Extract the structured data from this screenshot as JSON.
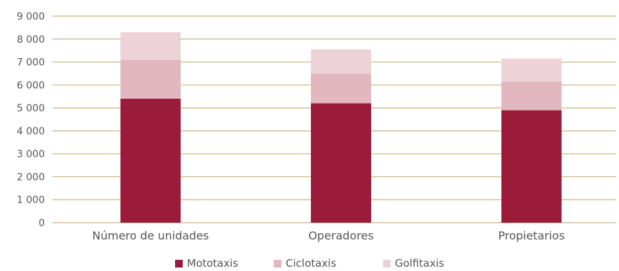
{
  "chart_data": {
    "type": "bar",
    "stacked": true,
    "categories": [
      "Número de unidades",
      "Operadores",
      "Propietarios"
    ],
    "series": [
      {
        "name": "Mototaxis",
        "values": [
          5400,
          5200,
          4900
        ],
        "color": "#9b1c3a"
      },
      {
        "name": "Ciclotaxis",
        "values": [
          1700,
          1300,
          1250
        ],
        "color": "#e2b7bf"
      },
      {
        "name": "Golfitaxis",
        "values": [
          1200,
          1050,
          1000
        ],
        "color": "#edd3d7"
      }
    ],
    "y_ticks": [
      "0",
      "1 000",
      "2 000",
      "3 000",
      "4 000",
      "5 000",
      "6 000",
      "7 000",
      "8 000",
      "9 000"
    ],
    "ylim": [
      0,
      9000
    ],
    "grid": true,
    "gridline_color": "#c9b27a",
    "legend_position": "bottom-center",
    "title": "",
    "xlabel": "",
    "ylabel": ""
  }
}
